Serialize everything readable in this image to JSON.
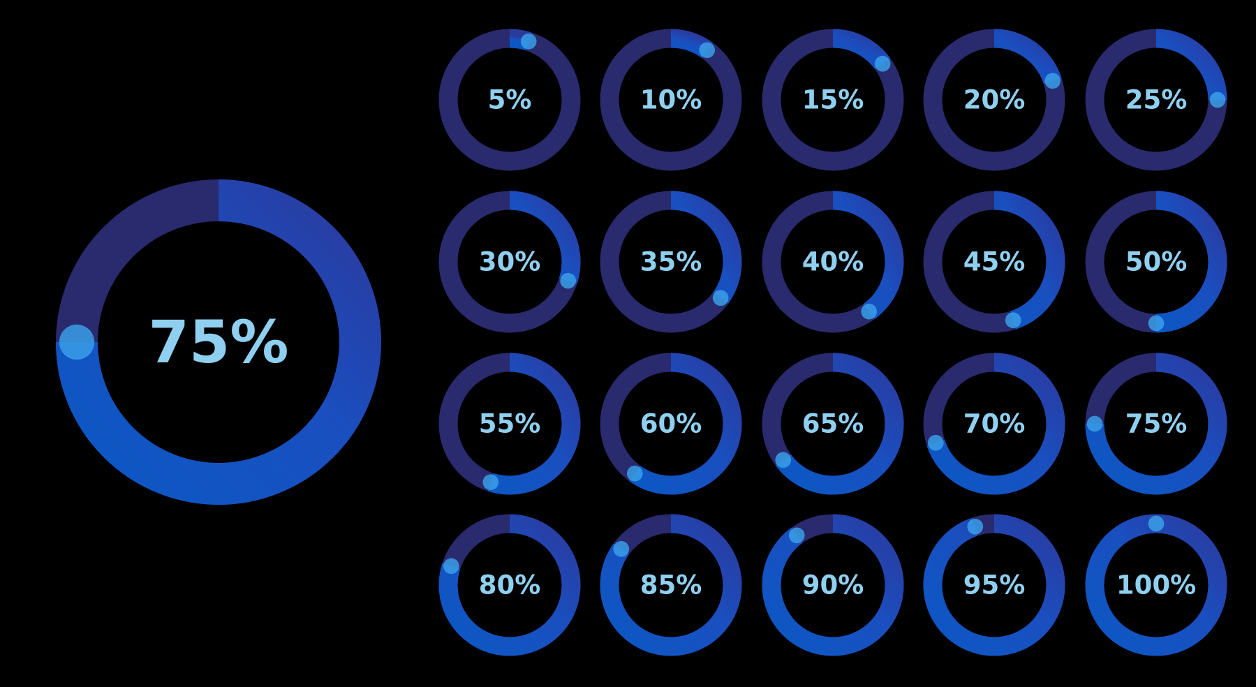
{
  "colors": {
    "background": "#000000",
    "track": "#2a2a6e",
    "progress_start": "#0a4fb8",
    "progress_end": "#1a4fc8",
    "progress_fade": "#2a2a6e",
    "knob": "#3a9fe8",
    "label": "#8fd0f0"
  },
  "featured": {
    "label": "75%",
    "percent": 75
  },
  "grid": [
    {
      "label": "5%",
      "percent": 5
    },
    {
      "label": "10%",
      "percent": 10
    },
    {
      "label": "15%",
      "percent": 15
    },
    {
      "label": "20%",
      "percent": 20
    },
    {
      "label": "25%",
      "percent": 25
    },
    {
      "label": "30%",
      "percent": 30
    },
    {
      "label": "35%",
      "percent": 35
    },
    {
      "label": "40%",
      "percent": 40
    },
    {
      "label": "45%",
      "percent": 45
    },
    {
      "label": "50%",
      "percent": 50
    },
    {
      "label": "55%",
      "percent": 55
    },
    {
      "label": "60%",
      "percent": 60
    },
    {
      "label": "65%",
      "percent": 65
    },
    {
      "label": "70%",
      "percent": 70
    },
    {
      "label": "75%",
      "percent": 75
    },
    {
      "label": "80%",
      "percent": 80
    },
    {
      "label": "85%",
      "percent": 85
    },
    {
      "label": "90%",
      "percent": 90
    },
    {
      "label": "95%",
      "percent": 95
    },
    {
      "label": "100%",
      "percent": 100
    }
  ]
}
